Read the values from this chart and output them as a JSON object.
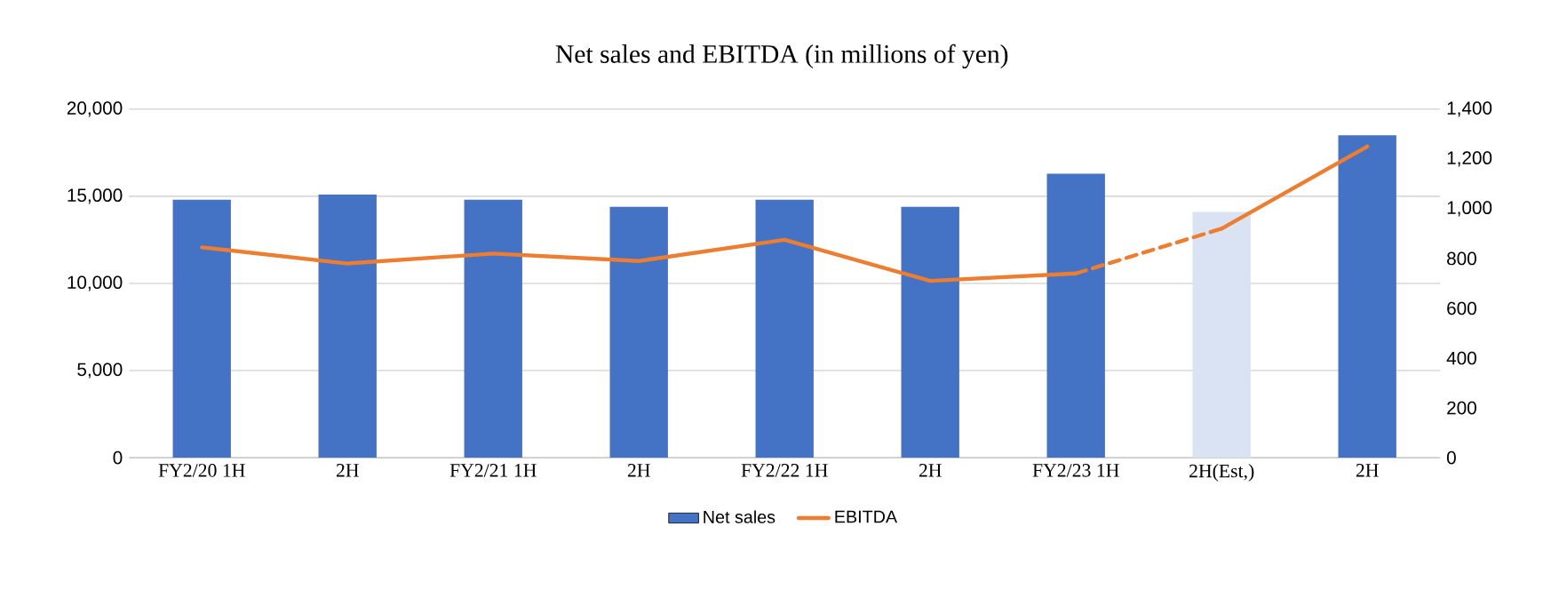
{
  "chart_data": {
    "type": "bar",
    "title": "Net sales and EBITDA (in millions of yen)",
    "categories": [
      "FY2/20 1H",
      "2H",
      "FY2/21 1H",
      "2H",
      "FY2/22 1H",
      "2H",
      "FY2/23 1H",
      "2H(Est,)",
      "2H"
    ],
    "series": [
      {
        "name": "Net sales",
        "color": "#4472c4",
        "colors": [
          "#4472c4",
          "#4472c4",
          "#4472c4",
          "#4472c4",
          "#4472c4",
          "#4472c4",
          "#4472c4",
          "#dae3f3",
          "#4472c4"
        ],
        "values": [
          14800,
          15100,
          14800,
          14400,
          14800,
          14400,
          16300,
          14100,
          18500
        ]
      },
      {
        "name": "EBITDA",
        "type": "line",
        "axis": "y2",
        "color": "#ed7d31",
        "line_style": "solid",
        "values": [
          845,
          780,
          820,
          790,
          875,
          710,
          740,
          null,
          null
        ]
      },
      {
        "type": "line",
        "axis": "y2",
        "color": "#ed7d31",
        "line_style": "dashed",
        "values": [
          null,
          null,
          null,
          null,
          null,
          null,
          740,
          920,
          null
        ]
      },
      {
        "type": "line",
        "axis": "y2",
        "color": "#ed7d31",
        "line_style": "solid",
        "values": [
          null,
          null,
          null,
          null,
          null,
          null,
          null,
          920,
          1250
        ]
      }
    ],
    "ylim": [
      0,
      20000
    ],
    "yticks": [
      0,
      {
        "value": 5000,
        "label": "5,000"
      },
      {
        "value": 10000,
        "label": "10,000"
      },
      {
        "value": 15000,
        "label": "15,000"
      },
      {
        "value": 20000,
        "label": "20,000"
      }
    ],
    "y2lim": [
      0,
      1400
    ],
    "y2ticks": [
      0,
      200,
      400,
      600,
      800,
      {
        "value": 1000,
        "label": "1,000"
      },
      {
        "value": 1200,
        "label": "1,200"
      },
      {
        "value": 1400,
        "label": "1,400"
      }
    ],
    "grid": "y",
    "legend": "bottom"
  }
}
